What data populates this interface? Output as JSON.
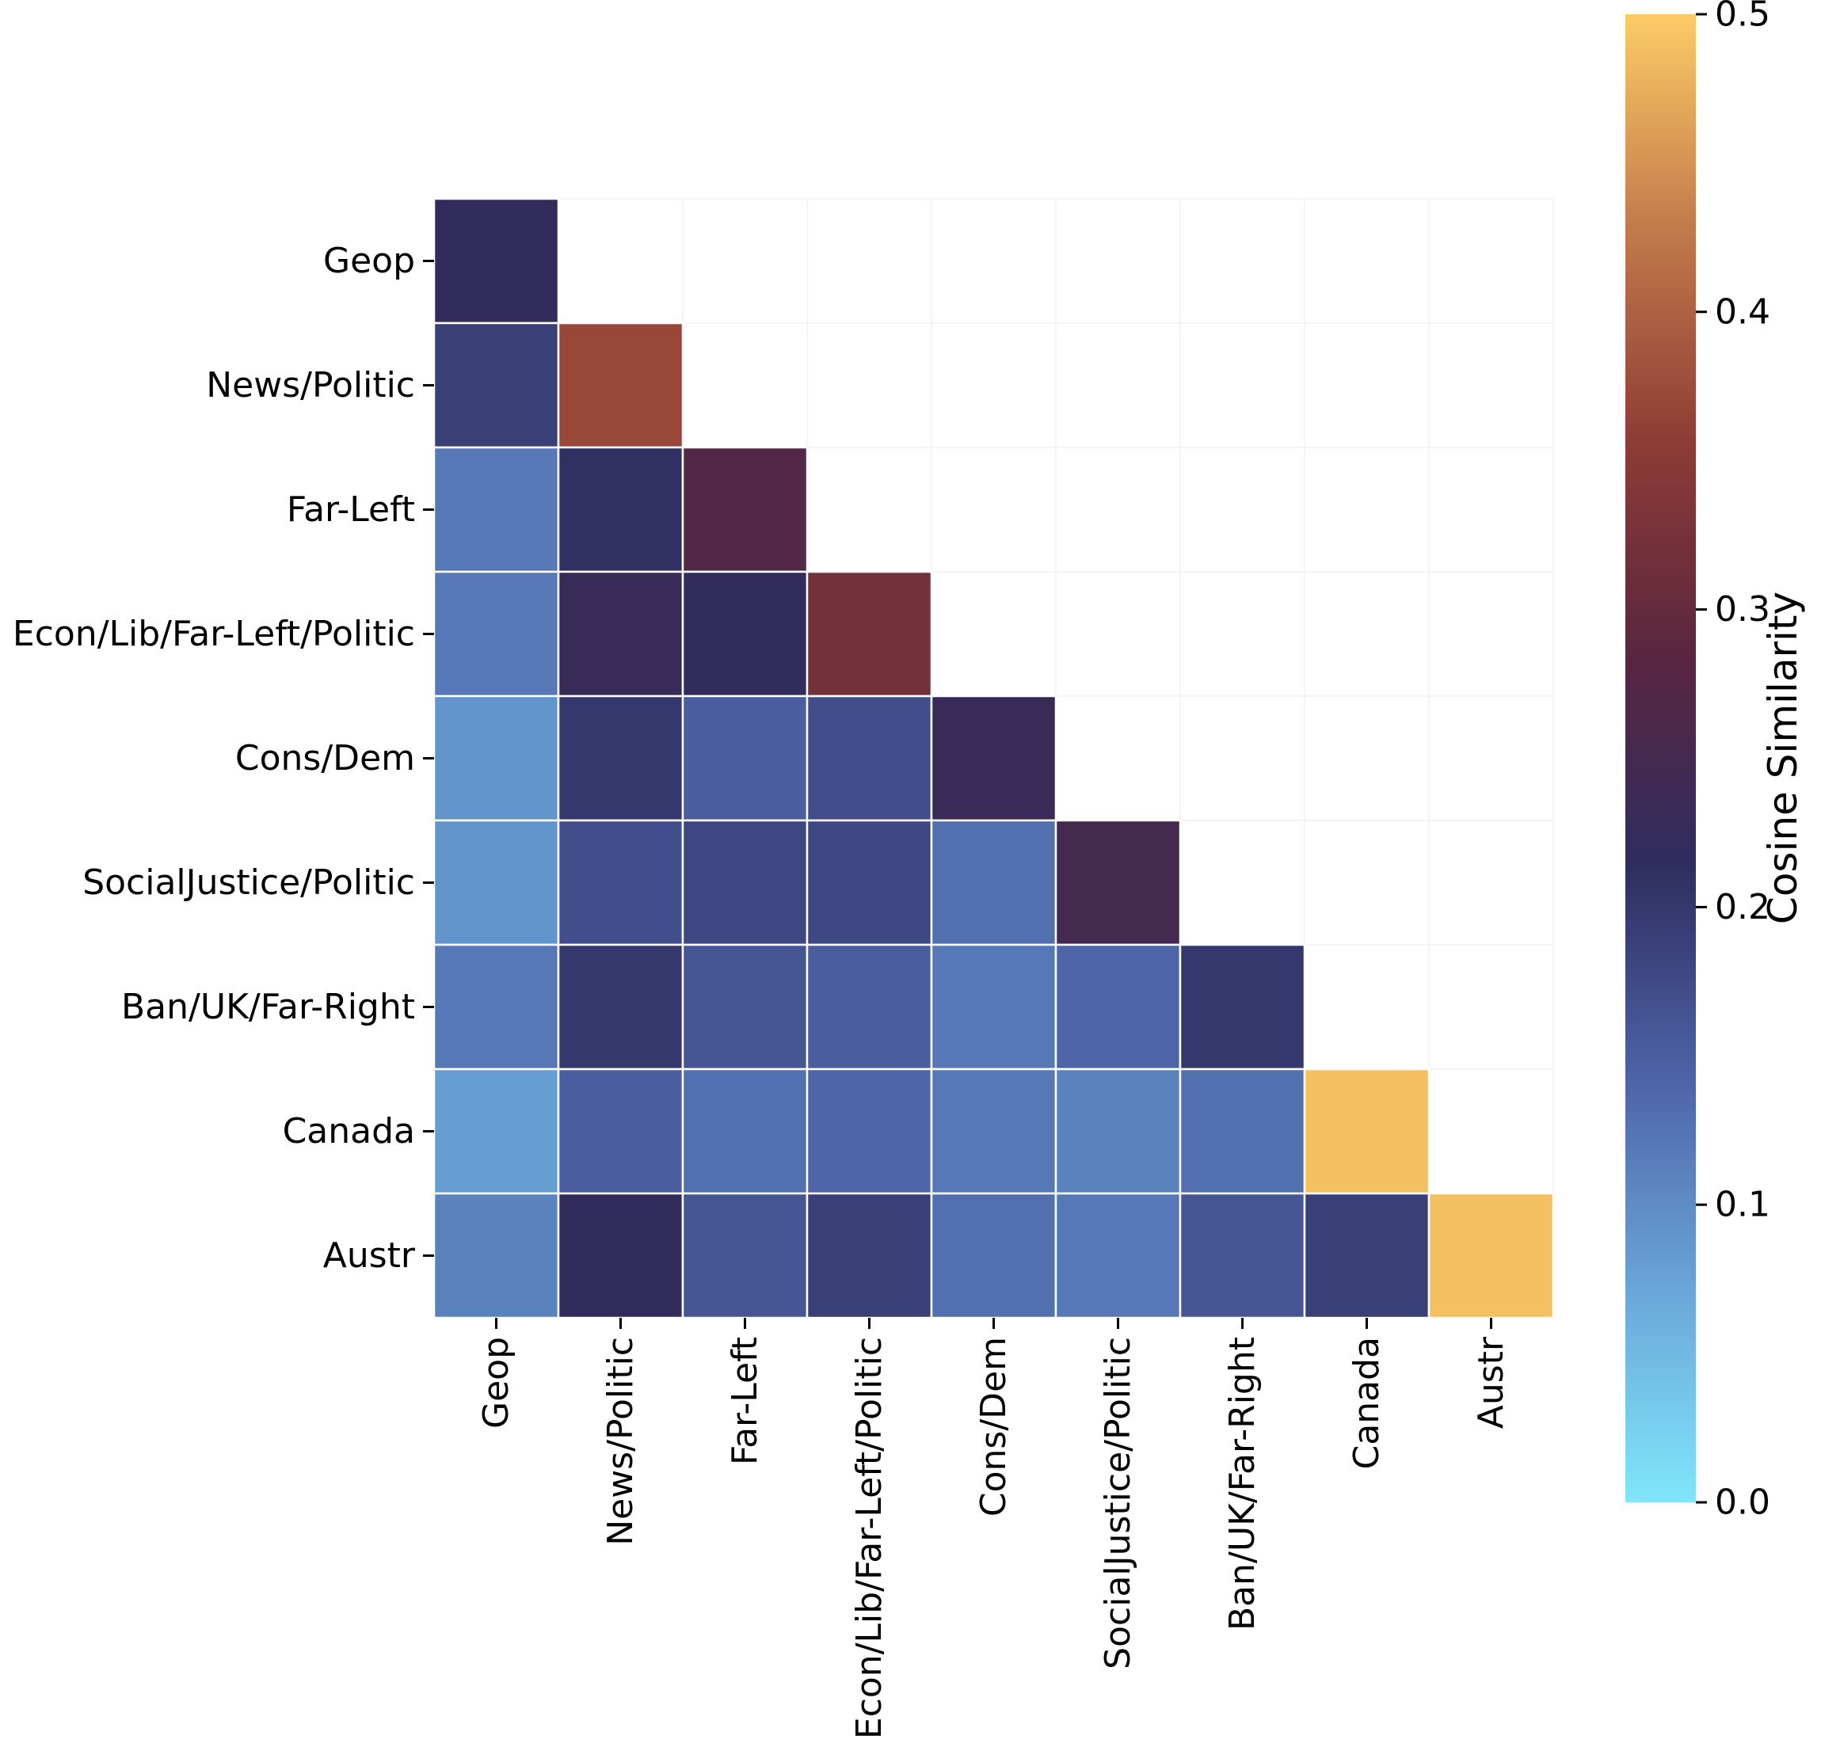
{
  "chart_data": {
    "type": "heatmap",
    "title": "",
    "mask": "upper-triangle",
    "row_labels": [
      "Geop",
      "News/Politic",
      "Far-Left",
      "Econ/Lib/Far-Left/Politic",
      "Cons/Dem",
      "SocialJustice/Politic",
      "Ban/UK/Far-Right",
      "Canada",
      "Austr"
    ],
    "col_labels": [
      "Geop",
      "News/Politic",
      "Far-Left",
      "Econ/Lib/Far-Left/Politic",
      "Cons/Dem",
      "SocialJustice/Politic",
      "Ban/UK/Far-Right",
      "Canada",
      "Austr"
    ],
    "values": [
      [
        0.22,
        null,
        null,
        null,
        null,
        null,
        null,
        null,
        null
      ],
      [
        0.19,
        0.37,
        null,
        null,
        null,
        null,
        null,
        null,
        null
      ],
      [
        0.12,
        0.21,
        0.27,
        null,
        null,
        null,
        null,
        null,
        null
      ],
      [
        0.12,
        0.23,
        0.22,
        0.32,
        null,
        null,
        null,
        null,
        null
      ],
      [
        0.09,
        0.2,
        0.15,
        0.17,
        0.23,
        null,
        null,
        null,
        null
      ],
      [
        0.09,
        0.17,
        0.18,
        0.18,
        0.13,
        0.25,
        null,
        null,
        null
      ],
      [
        0.12,
        0.2,
        0.16,
        0.15,
        0.12,
        0.14,
        0.2,
        null,
        null
      ],
      [
        0.08,
        0.15,
        0.13,
        0.14,
        0.12,
        0.11,
        0.13,
        0.49,
        null
      ],
      [
        0.11,
        0.22,
        0.16,
        0.19,
        0.13,
        0.12,
        0.16,
        0.19,
        0.49
      ]
    ],
    "colorbar": {
      "label": "Cosine Similarity",
      "vmin": 0.0,
      "vmax": 0.5,
      "ticks": [
        "0.0",
        "0.1",
        "0.2",
        "0.3",
        "0.4",
        "0.5"
      ],
      "colors": [
        "#80e6fa",
        "#6aa6d8",
        "#4d63a6",
        "#2f2d5f",
        "#5a2640",
        "#8f3c35",
        "#c37a4b",
        "#fccc66"
      ]
    }
  }
}
